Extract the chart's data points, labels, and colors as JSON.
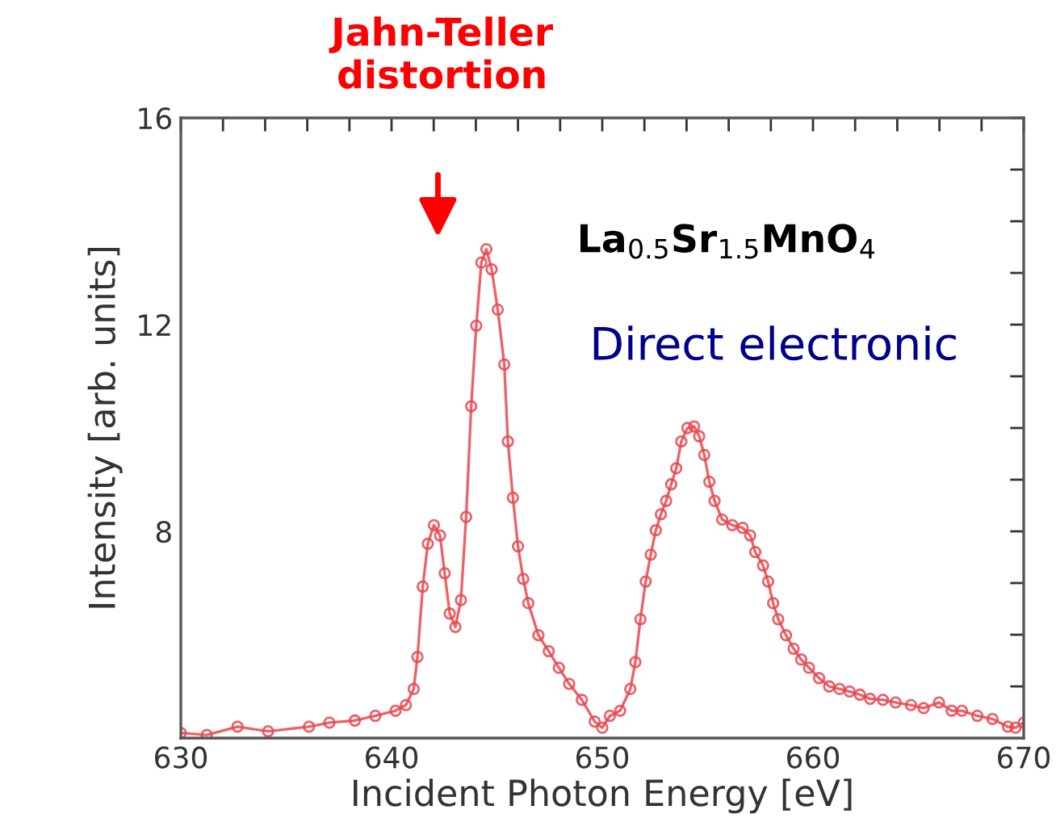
{
  "chart_data": {
    "type": "line",
    "xlabel": "Incident Photon Energy [eV]",
    "ylabel": "Intensity [arb. units]",
    "xlim": [
      630,
      670
    ],
    "ylim": [
      4,
      16
    ],
    "xticks": [
      630,
      {
        "value": 632,
        "label": null
      },
      {
        "value": 634,
        "label": null
      },
      {
        "value": 636,
        "label": null
      },
      {
        "value": 638,
        "label": null
      },
      640,
      {
        "value": 642,
        "label": null
      },
      {
        "value": 644,
        "label": null
      },
      {
        "value": 646,
        "label": null
      },
      {
        "value": 648,
        "label": null
      },
      650,
      {
        "value": 652,
        "label": null
      },
      {
        "value": 654,
        "label": null
      },
      {
        "value": 656,
        "label": null
      },
      {
        "value": 658,
        "label": null
      },
      660,
      {
        "value": 662,
        "label": null
      },
      {
        "value": 664,
        "label": null
      },
      {
        "value": 666,
        "label": null
      },
      {
        "value": 668,
        "label": null
      },
      670
    ],
    "yticks": [
      {
        "value": 5,
        "label": null
      },
      {
        "value": 6,
        "label": null
      },
      {
        "value": 7,
        "label": null
      },
      8,
      {
        "value": 9,
        "label": null
      },
      {
        "value": 10,
        "label": null
      },
      {
        "value": 11,
        "label": null
      },
      12,
      {
        "value": 13,
        "label": null
      },
      {
        "value": 14,
        "label": null
      },
      {
        "value": 15,
        "label": null
      },
      16
    ],
    "grid": false,
    "legend": false,
    "marker": "circle",
    "line_style": "solid",
    "series": [
      {
        "color": "#e8474f",
        "x": [
          630.0,
          631.23,
          632.69,
          634.14,
          636.08,
          637.05,
          638.26,
          639.23,
          640.19,
          640.68,
          641.05,
          641.23,
          641.48,
          641.72,
          642.01,
          642.3,
          642.52,
          642.76,
          643.03,
          643.29,
          643.54,
          643.78,
          644.02,
          644.26,
          644.5,
          644.75,
          645.04,
          645.35,
          645.52,
          645.76,
          646.0,
          646.25,
          646.49,
          646.97,
          647.46,
          647.94,
          648.43,
          649.03,
          649.64,
          650.0,
          650.36,
          650.85,
          651.33,
          651.57,
          651.81,
          652.06,
          652.3,
          652.54,
          652.78,
          653.03,
          653.27,
          653.51,
          653.75,
          654.04,
          654.36,
          654.6,
          654.84,
          655.08,
          655.33,
          655.69,
          656.17,
          656.66,
          657.02,
          657.26,
          657.63,
          657.87,
          658.11,
          658.35,
          658.72,
          659.08,
          659.44,
          659.81,
          660.29,
          660.77,
          661.26,
          661.74,
          662.23,
          662.71,
          663.32,
          663.92,
          664.65,
          665.25,
          665.98,
          666.58,
          667.07,
          667.8,
          668.52,
          669.25,
          669.61,
          670.0
        ],
        "values": [
          4.1,
          4.06,
          4.22,
          4.13,
          4.22,
          4.3,
          4.34,
          4.43,
          4.53,
          4.64,
          4.95,
          5.57,
          6.93,
          7.76,
          8.12,
          7.92,
          7.19,
          6.41,
          6.15,
          6.67,
          8.28,
          10.42,
          11.98,
          13.2,
          13.46,
          13.07,
          12.29,
          11.23,
          9.74,
          8.65,
          7.71,
          7.08,
          6.61,
          5.99,
          5.68,
          5.36,
          5.05,
          4.74,
          4.32,
          4.2,
          4.43,
          4.53,
          4.95,
          5.47,
          6.3,
          7.03,
          7.55,
          8.02,
          8.33,
          8.59,
          8.91,
          9.22,
          9.74,
          10.0,
          10.03,
          9.84,
          9.48,
          8.96,
          8.59,
          8.23,
          8.12,
          8.07,
          7.92,
          7.6,
          7.34,
          7.03,
          6.61,
          6.3,
          5.99,
          5.73,
          5.52,
          5.36,
          5.16,
          5.0,
          4.95,
          4.9,
          4.84,
          4.76,
          4.74,
          4.69,
          4.64,
          4.58,
          4.69,
          4.53,
          4.53,
          4.43,
          4.37,
          4.22,
          4.2,
          4.3
        ]
      }
    ],
    "annotations": [
      "Jahn-Teller\ndistortion",
      "La$_{0.5}$Sr$_{1.5}$MnO$_{4}$",
      "Direct electronic"
    ]
  }
}
